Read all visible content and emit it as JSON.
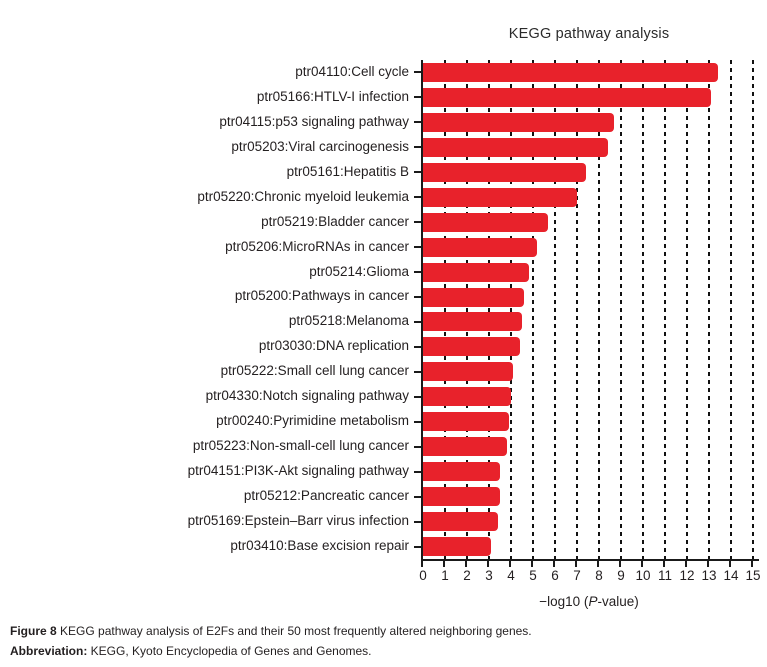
{
  "title": "KEGG pathway analysis",
  "chart_data": {
    "type": "bar",
    "orientation": "horizontal",
    "title": "KEGG pathway analysis",
    "categories": [
      "ptr04110:Cell cycle",
      "ptr05166:HTLV-I infection",
      "ptr04115:p53 signaling pathway",
      "ptr05203:Viral carcinogenesis",
      "ptr05161:Hepatitis B",
      "ptr05220:Chronic myeloid leukemia",
      "ptr05219:Bladder cancer",
      "ptr05206:MicroRNAs in cancer",
      "ptr05214:Glioma",
      "ptr05200:Pathways in cancer",
      "ptr05218:Melanoma",
      "ptr03030:DNA replication",
      "ptr05222:Small cell lung cancer",
      "ptr04330:Notch signaling pathway",
      "ptr00240:Pyrimidine metabolism",
      "ptr05223:Non-small-cell lung cancer",
      "ptr04151:PI3K-Akt signaling pathway",
      "ptr05212:Pancreatic cancer",
      "ptr05169:Epstein–Barr virus infection",
      "ptr03410:Base excision repair"
    ],
    "values": [
      13.4,
      13.1,
      8.7,
      8.4,
      7.4,
      7.0,
      5.7,
      5.2,
      4.8,
      4.6,
      4.5,
      4.4,
      4.1,
      4.0,
      3.9,
      3.8,
      3.5,
      3.5,
      3.4,
      3.1
    ],
    "xlabel": "−log10 (P-value)",
    "xlabel_parts": {
      "prefix": "−log10 (",
      "italic": "P",
      "suffix": "-value)"
    },
    "xlim": [
      0,
      15
    ],
    "xticks": [
      0,
      1,
      2,
      3,
      4,
      5,
      6,
      7,
      8,
      9,
      10,
      11,
      12,
      13,
      14,
      15
    ],
    "grid": "dashed-vertical-at-integers-1-to-15",
    "legend": "none",
    "bar_color": "#e8222b",
    "axis_color": "#1a1a1a"
  },
  "caption": {
    "figure_label": "Figure 8",
    "figure_text": " KEGG pathway analysis of E2Fs and their 50 most frequently altered neighboring genes.",
    "abbr_label": "Abbreviation:",
    "abbr_text": " KEGG, Kyoto Encyclopedia of Genes and Genomes."
  }
}
